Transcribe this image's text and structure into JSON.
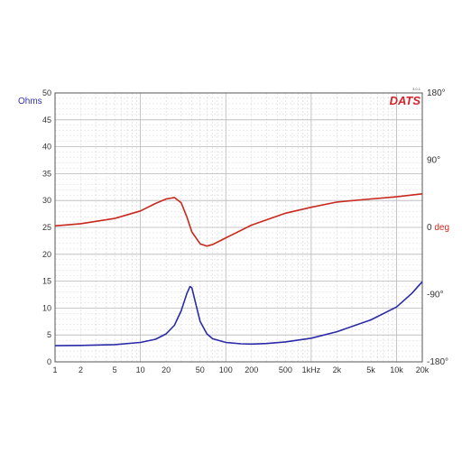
{
  "colors": {
    "impedance": "#2a2aa8",
    "phase": "#c8281e",
    "ohms_label": "#3434b0",
    "deg_label": "#c8281e",
    "logo": "#d2232a",
    "grid_major": "#b8b8b8",
    "grid_minor": "#d8d8d8",
    "frame": "#555555"
  },
  "logo": {
    "text": "DATS",
    "version": "3.0.1"
  },
  "chart_data": {
    "type": "line",
    "x_scale": "log",
    "xlim": [
      1,
      20000
    ],
    "x_ticks": [
      {
        "v": 1,
        "label": "1"
      },
      {
        "v": 2,
        "label": "2"
      },
      {
        "v": 5,
        "label": "5"
      },
      {
        "v": 10,
        "label": "10"
      },
      {
        "v": 20,
        "label": "20"
      },
      {
        "v": 50,
        "label": "50"
      },
      {
        "v": 100,
        "label": "100"
      },
      {
        "v": 200,
        "label": "200"
      },
      {
        "v": 500,
        "label": "500"
      },
      {
        "v": 1000,
        "label": "1kHz"
      },
      {
        "v": 2000,
        "label": "2k"
      },
      {
        "v": 5000,
        "label": "5k"
      },
      {
        "v": 10000,
        "label": "10k"
      },
      {
        "v": 20000,
        "label": "20k"
      }
    ],
    "y_left": {
      "label": "Ohms",
      "ylim": [
        0,
        50
      ],
      "ticks": [
        "0",
        "5",
        "10",
        "15",
        "20",
        "25",
        "30",
        "35",
        "40",
        "45",
        "50"
      ]
    },
    "y_right": {
      "ylim": [
        -180,
        180
      ],
      "ticks": [
        {
          "v": 180,
          "label": "180°"
        },
        {
          "v": 90,
          "label": "90°"
        },
        {
          "v": 0,
          "label": "0"
        },
        {
          "v": -90,
          "label": "-90°"
        },
        {
          "v": -180,
          "label": "-180°"
        }
      ],
      "zero_unit": "deg"
    },
    "grid": true,
    "series": [
      {
        "axis": "left",
        "x": [
          1,
          2,
          5,
          10,
          15,
          20,
          25,
          30,
          35,
          38,
          40,
          45,
          50,
          60,
          70,
          100,
          150,
          200,
          300,
          500,
          1000,
          2000,
          5000,
          10000,
          15000,
          20000
        ],
        "values": [
          3.0,
          3.05,
          3.2,
          3.6,
          4.2,
          5.2,
          6.8,
          9.5,
          12.7,
          14.0,
          13.8,
          10.5,
          7.5,
          5.2,
          4.3,
          3.6,
          3.35,
          3.3,
          3.4,
          3.7,
          4.4,
          5.6,
          7.8,
          10.2,
          12.7,
          14.9
        ]
      },
      {
        "axis": "right",
        "x": [
          1,
          2,
          5,
          10,
          15,
          20,
          25,
          30,
          35,
          40,
          50,
          60,
          70,
          100,
          200,
          500,
          1000,
          2000,
          5000,
          10000,
          20000
        ],
        "values": [
          2,
          5,
          12,
          22,
          32,
          38,
          40,
          33,
          14,
          -6,
          -22,
          -25,
          -23,
          -14,
          3,
          19,
          27,
          34,
          38,
          41,
          45
        ]
      }
    ]
  }
}
